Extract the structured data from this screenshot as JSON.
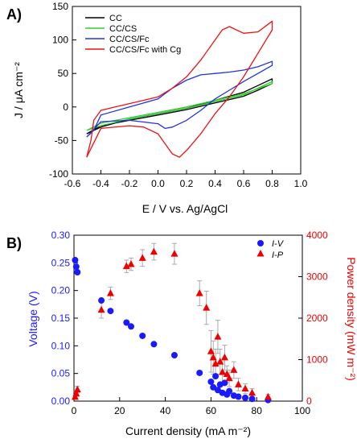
{
  "chart_data": [
    {
      "panel": "A)",
      "type": "line",
      "xlabel": "E / V vs. Ag/AgCl",
      "ylabel": "J / μA cm⁻²",
      "xlim": [
        -0.6,
        1.0
      ],
      "ylim": [
        -100,
        150
      ],
      "xticks": [
        "-0.6",
        "-0.4",
        "-0.2",
        "0.0",
        "0.2",
        "0.4",
        "0.6",
        "0.8",
        "1.0"
      ],
      "yticks": [
        "-100",
        "-50",
        "0",
        "50",
        "100",
        "150"
      ],
      "legend_position": "top-left",
      "series": [
        {
          "name": "CC",
          "color": "#000000",
          "x": [
            -0.5,
            -0.4,
            -0.2,
            0.0,
            0.2,
            0.4,
            0.6,
            0.7,
            0.8,
            0.8,
            0.7,
            0.6,
            0.4,
            0.2,
            0.0,
            -0.2,
            -0.4,
            -0.5
          ],
          "y": [
            -40,
            -30,
            -18,
            -10,
            -2,
            10,
            22,
            32,
            42,
            35,
            25,
            16,
            6,
            -4,
            -12,
            -20,
            -28,
            -40
          ]
        },
        {
          "name": "CC/CS",
          "color": "#33cc33",
          "x": [
            -0.5,
            -0.4,
            -0.2,
            0.0,
            0.2,
            0.4,
            0.6,
            0.7,
            0.8,
            0.8,
            0.7,
            0.6,
            0.4,
            0.2,
            0.0,
            -0.2,
            -0.4,
            -0.5
          ],
          "y": [
            -35,
            -28,
            -18,
            -10,
            -2,
            8,
            18,
            28,
            38,
            35,
            27,
            20,
            10,
            0,
            -8,
            -16,
            -24,
            -35
          ]
        },
        {
          "name": "CC/CS/Fc",
          "color": "#2233dd",
          "x": [
            -0.5,
            -0.45,
            -0.4,
            -0.2,
            0.0,
            0.1,
            0.2,
            0.3,
            0.4,
            0.5,
            0.6,
            0.7,
            0.8,
            0.8,
            0.7,
            0.6,
            0.5,
            0.4,
            0.3,
            0.2,
            0.1,
            0.05,
            0.0,
            -0.2,
            -0.4,
            -0.5
          ],
          "y": [
            -45,
            -35,
            -12,
            0,
            12,
            28,
            40,
            48,
            50,
            52,
            55,
            60,
            68,
            62,
            50,
            38,
            25,
            12,
            -5,
            -20,
            -30,
            -32,
            -25,
            -20,
            -22,
            -45
          ]
        },
        {
          "name": "CC/CS/Fc with Cg",
          "color": "#ee1111",
          "x": [
            -0.5,
            -0.47,
            -0.45,
            -0.4,
            -0.3,
            -0.2,
            -0.1,
            0.0,
            0.1,
            0.2,
            0.3,
            0.4,
            0.45,
            0.5,
            0.6,
            0.7,
            0.8,
            0.8,
            0.7,
            0.6,
            0.5,
            0.4,
            0.3,
            0.2,
            0.15,
            0.1,
            0.05,
            0.0,
            -0.1,
            -0.2,
            -0.4,
            -0.5
          ],
          "y": [
            -75,
            -50,
            -20,
            -5,
            0,
            5,
            10,
            15,
            28,
            45,
            70,
            100,
            115,
            120,
            110,
            112,
            128,
            115,
            80,
            45,
            15,
            -10,
            -40,
            -65,
            -75,
            -70,
            -55,
            -40,
            -30,
            -28,
            -32,
            -75
          ]
        }
      ]
    },
    {
      "panel": "B)",
      "type": "scatter",
      "xlabel": "Current density (mA m⁻²)",
      "ylabel_left": "Voltage (V)",
      "ylabel_right": "Power density (mW m⁻²)",
      "xlim": [
        0,
        100
      ],
      "ylim_left": [
        0,
        0.3
      ],
      "ylim_right": [
        0,
        4000
      ],
      "xticks": [
        "0",
        "20",
        "40",
        "60",
        "80",
        "100"
      ],
      "yticks_left": [
        "0.00",
        "0.05",
        "0.10",
        "0.15",
        "0.20",
        "0.25",
        "0.30"
      ],
      "yticks_right": [
        "0",
        "1000",
        "2000",
        "3000",
        "4000"
      ],
      "legend_position": "top-right",
      "series": [
        {
          "name": "I-V",
          "axis": "left",
          "color": "#1a1aff",
          "marker": "circle",
          "x": [
            0.5,
            1.0,
            1.5,
            12,
            16,
            23,
            25,
            30,
            35,
            44,
            55,
            60,
            61,
            62,
            63,
            64,
            65,
            66,
            67,
            68,
            70,
            72,
            75,
            78,
            85
          ],
          "y": [
            0.255,
            0.243,
            0.233,
            0.182,
            0.163,
            0.142,
            0.135,
            0.118,
            0.103,
            0.083,
            0.051,
            0.035,
            0.025,
            0.045,
            0.02,
            0.03,
            0.015,
            0.033,
            0.012,
            0.018,
            0.01,
            0.008,
            0.006,
            0.004,
            0.002
          ]
        },
        {
          "name": "I-P",
          "axis": "right",
          "color": "#ee0000",
          "marker": "triangle",
          "x": [
            0.5,
            1.0,
            1.5,
            12,
            16,
            23,
            25,
            30,
            35,
            44,
            55,
            58,
            60,
            61,
            62,
            63,
            64,
            65,
            66,
            67,
            68,
            70,
            72,
            75,
            78,
            85
          ],
          "y": [
            100,
            180,
            280,
            2200,
            2600,
            3250,
            3300,
            3450,
            3600,
            3550,
            2600,
            2250,
            1200,
            1050,
            900,
            1550,
            950,
            700,
            1050,
            650,
            550,
            750,
            400,
            300,
            200,
            100
          ],
          "err": [
            50,
            60,
            80,
            200,
            150,
            150,
            150,
            200,
            200,
            250,
            300,
            400,
            500,
            400,
            350,
            400,
            300,
            250,
            300,
            200,
            200,
            200,
            150,
            120,
            100,
            60
          ]
        }
      ]
    }
  ]
}
